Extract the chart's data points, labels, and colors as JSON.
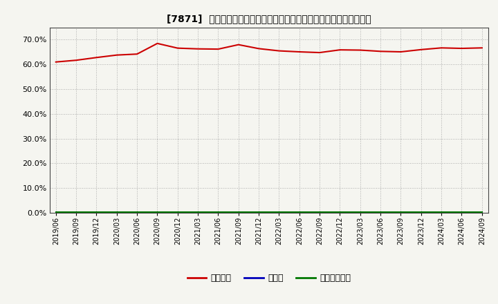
{
  "title": "[7871]  自己資本、のれん、繰延税金資産の総資産に対する比率の推移",
  "background_color": "#f5f5f0",
  "plot_background_color": "#f5f5f0",
  "grid_color": "#999999",
  "ylim": [
    0.0,
    0.75
  ],
  "yticks": [
    0.0,
    0.1,
    0.2,
    0.3,
    0.4,
    0.5,
    0.6,
    0.7
  ],
  "series": [
    {
      "name": "自己資本",
      "color": "#cc0000",
      "values": [
        0.61,
        0.617,
        0.628,
        0.638,
        0.642,
        0.685,
        0.666,
        0.663,
        0.662,
        0.68,
        0.664,
        0.655,
        0.651,
        0.648,
        0.659,
        0.658,
        0.653,
        0.651,
        0.66,
        0.667,
        0.665,
        0.667
      ]
    },
    {
      "name": "のれん",
      "color": "#0000bb",
      "values": [
        0.001,
        0.001,
        0.001,
        0.001,
        0.001,
        0.001,
        0.001,
        0.001,
        0.001,
        0.001,
        0.001,
        0.001,
        0.001,
        0.001,
        0.001,
        0.001,
        0.001,
        0.001,
        0.001,
        0.001,
        0.001,
        0.001
      ]
    },
    {
      "name": "繰延税金資産",
      "color": "#007700",
      "values": [
        0.004,
        0.004,
        0.004,
        0.004,
        0.004,
        0.004,
        0.004,
        0.004,
        0.004,
        0.004,
        0.004,
        0.004,
        0.004,
        0.004,
        0.004,
        0.004,
        0.004,
        0.004,
        0.004,
        0.004,
        0.004,
        0.004
      ]
    }
  ],
  "xtick_labels": [
    "2019/06",
    "2019/09",
    "2019/12",
    "2020/03",
    "2020/06",
    "2020/09",
    "2020/12",
    "2021/03",
    "2021/06",
    "2021/09",
    "2021/12",
    "2022/03",
    "2022/06",
    "2022/09",
    "2022/12",
    "2023/03",
    "2023/06",
    "2023/09",
    "2023/12",
    "2024/03",
    "2024/06",
    "2024/09"
  ],
  "legend_entries": [
    "自己資本",
    "のれん",
    "繰延税金資産"
  ],
  "legend_colors": [
    "#cc0000",
    "#0000bb",
    "#007700"
  ]
}
